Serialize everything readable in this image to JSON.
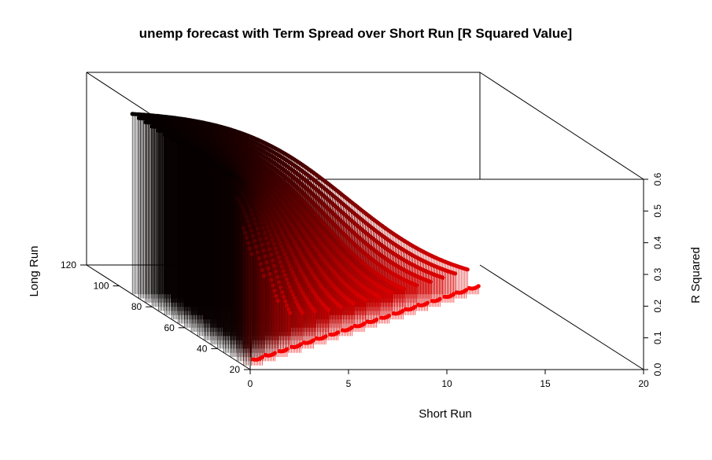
{
  "chart_data": {
    "type": "scatter3d",
    "title": "unemp forecast with Term Spread over Short Run [R Squared Value]",
    "xlabel": "Short Run",
    "ylabel": "Long Run",
    "zlabel": "R Squared",
    "xlim": [
      0,
      20
    ],
    "ylim": [
      20,
      120
    ],
    "zlim": [
      0,
      0.6
    ],
    "x_ticks": [
      "0",
      "5",
      "10",
      "15",
      "20"
    ],
    "y_ticks": [
      "20",
      "40",
      "60",
      "80",
      "100",
      "120"
    ],
    "z_ticks": [
      "0.0",
      "0.1",
      "0.2",
      "0.3",
      "0.4",
      "0.5",
      "0.6"
    ],
    "grid": false,
    "drop_lines": true,
    "color_scale": {
      "low": "#ff0000",
      "high": "#000000",
      "variable": "R Squared"
    },
    "long_run_values": [
      24,
      28,
      32,
      36,
      40,
      44,
      48,
      52,
      56,
      60,
      64,
      68,
      72,
      76,
      80,
      84,
      88,
      92
    ],
    "short_run_range": [
      1,
      18
    ],
    "max_r_squared": 0.58,
    "min_r_squared": 0.02
  }
}
